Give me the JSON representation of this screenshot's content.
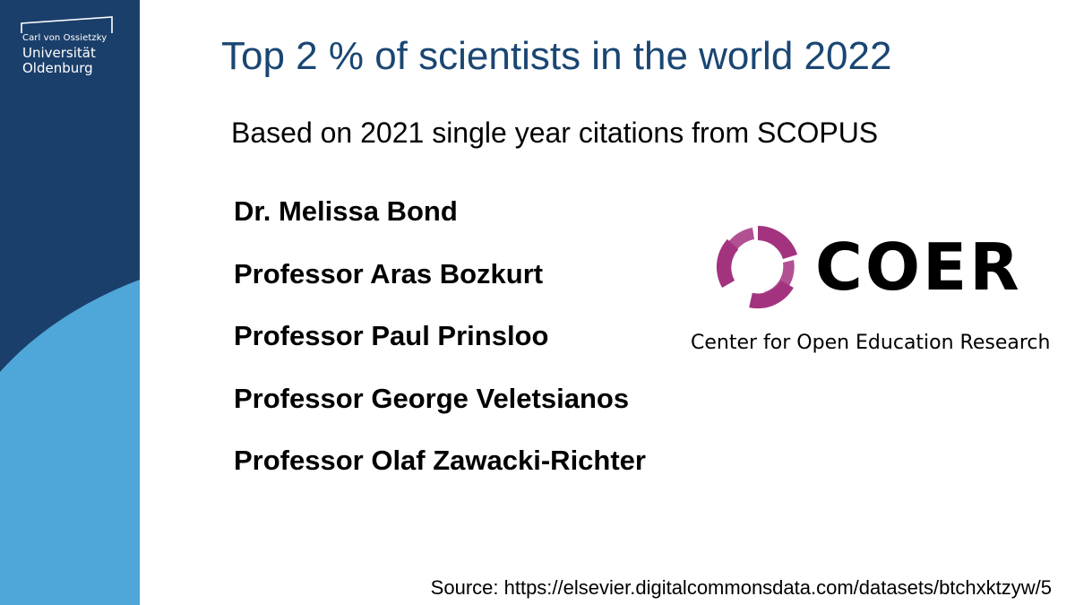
{
  "university_logo": {
    "line1": "Carl von Ossietzky",
    "line2": "Universität",
    "line3": "Oldenburg"
  },
  "title": "Top 2 % of scientists in the world 2022",
  "subtitle": "Based on 2021 single year citations from SCOPUS",
  "scientists": [
    "Dr. Melissa Bond",
    "Professor Aras Bozkurt",
    "Professor Paul Prinsloo",
    "Professor George Veletsianos",
    "Professor Olaf Zawacki-Richter"
  ],
  "coer_logo": {
    "wordmark": "COER",
    "tagline": "Center for Open Education Research",
    "mark_color": "#a3337f"
  },
  "source": "Source: https://elsevier.digitalcommonsdata.com/datasets/btchxktzyw/5",
  "colors": {
    "title": "#1a4673",
    "sidebar_dark": "#1b3f6b",
    "sidebar_light": "#4fa6d9"
  }
}
